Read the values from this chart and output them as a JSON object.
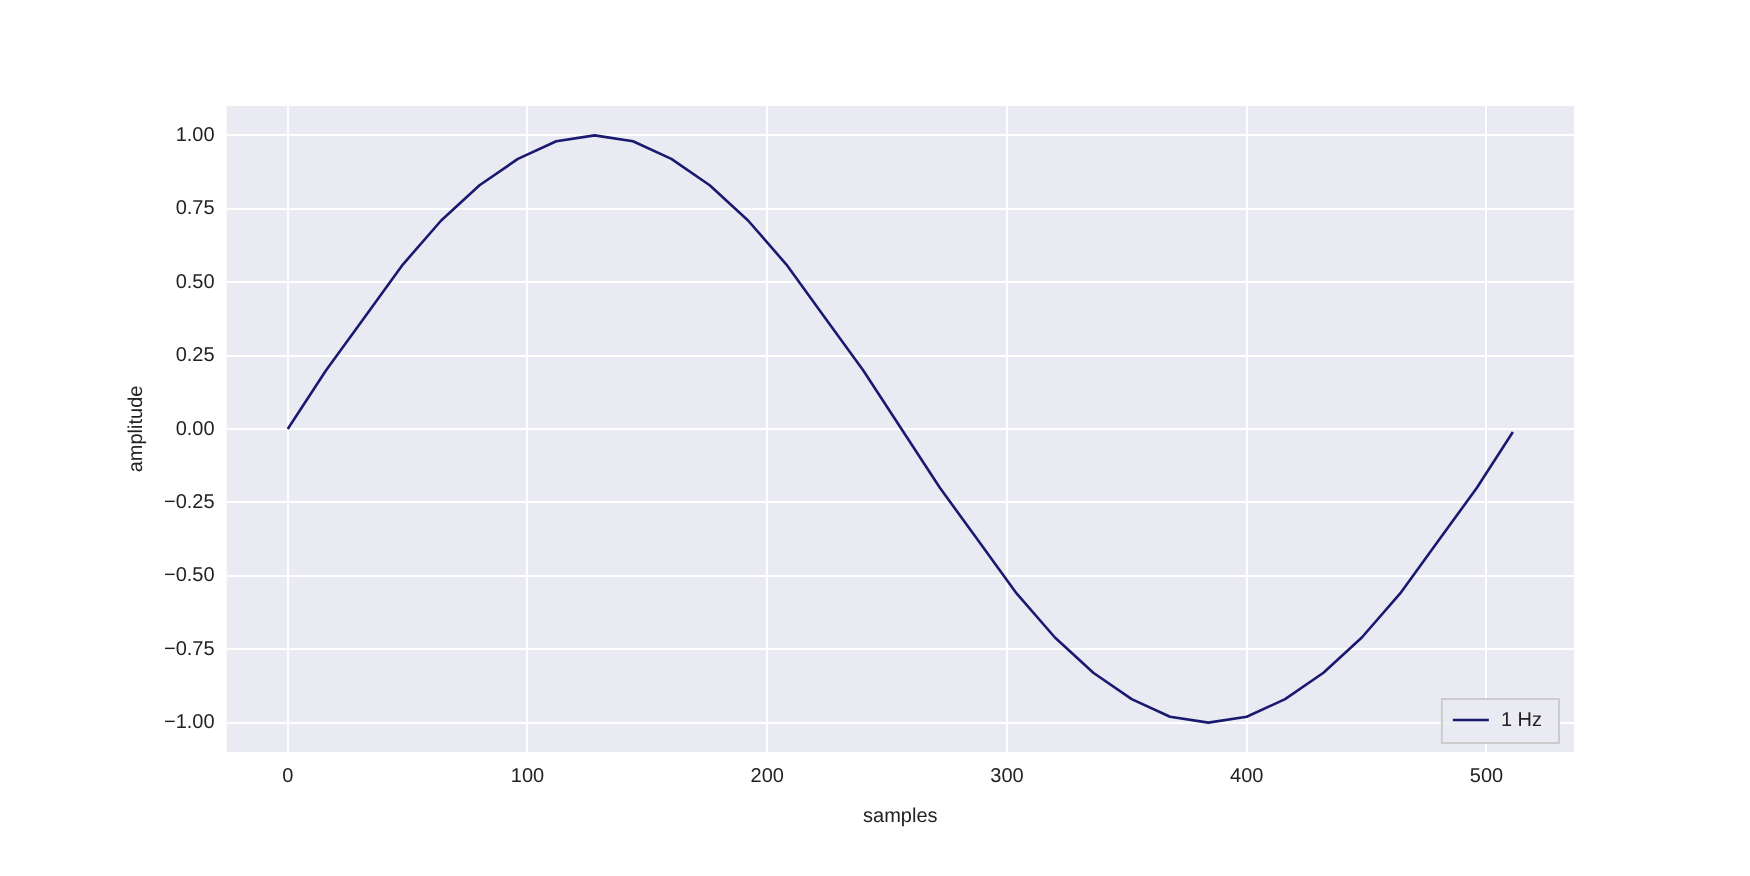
{
  "chart_data": {
    "type": "line",
    "xlabel": "samples",
    "ylabel": "amplitude",
    "x": [
      0,
      16,
      32,
      48,
      64,
      80,
      96,
      112,
      128,
      144,
      160,
      176,
      192,
      208,
      224,
      240,
      256,
      272,
      288,
      304,
      320,
      336,
      352,
      368,
      384,
      400,
      416,
      432,
      448,
      464,
      480,
      496,
      511
    ],
    "series": [
      {
        "name": "1 Hz",
        "color": "#191970",
        "values": [
          0,
          0.2,
          0.38,
          0.56,
          0.71,
          0.83,
          0.92,
          0.98,
          1,
          0.98,
          0.92,
          0.83,
          0.71,
          0.56,
          0.38,
          0.2,
          0,
          -0.2,
          -0.38,
          -0.56,
          -0.71,
          -0.83,
          -0.92,
          -0.98,
          -1,
          -0.98,
          -0.92,
          -0.83,
          -0.71,
          -0.56,
          -0.38,
          -0.2,
          -0.01
        ]
      }
    ],
    "xlim": [
      -25.5,
      536.5
    ],
    "ylim": [
      -1.1,
      1.1
    ],
    "xticks": [
      0,
      100,
      200,
      300,
      400,
      500
    ],
    "yticks": [
      {
        "value": -1,
        "label": "−1.00"
      },
      {
        "value": -0.75,
        "label": "−0.75"
      },
      {
        "value": -0.5,
        "label": "−0.50"
      },
      {
        "value": -0.25,
        "label": "−0.25"
      },
      {
        "value": 0,
        "label": "0.00"
      },
      {
        "value": 0.25,
        "label": "0.25"
      },
      {
        "value": 0.5,
        "label": "0.50"
      },
      {
        "value": 0.75,
        "label": "0.75"
      },
      {
        "value": 1,
        "label": "1.00"
      }
    ],
    "grid": true,
    "legend": "bottom right",
    "marker": "none",
    "line_style": "solid"
  }
}
